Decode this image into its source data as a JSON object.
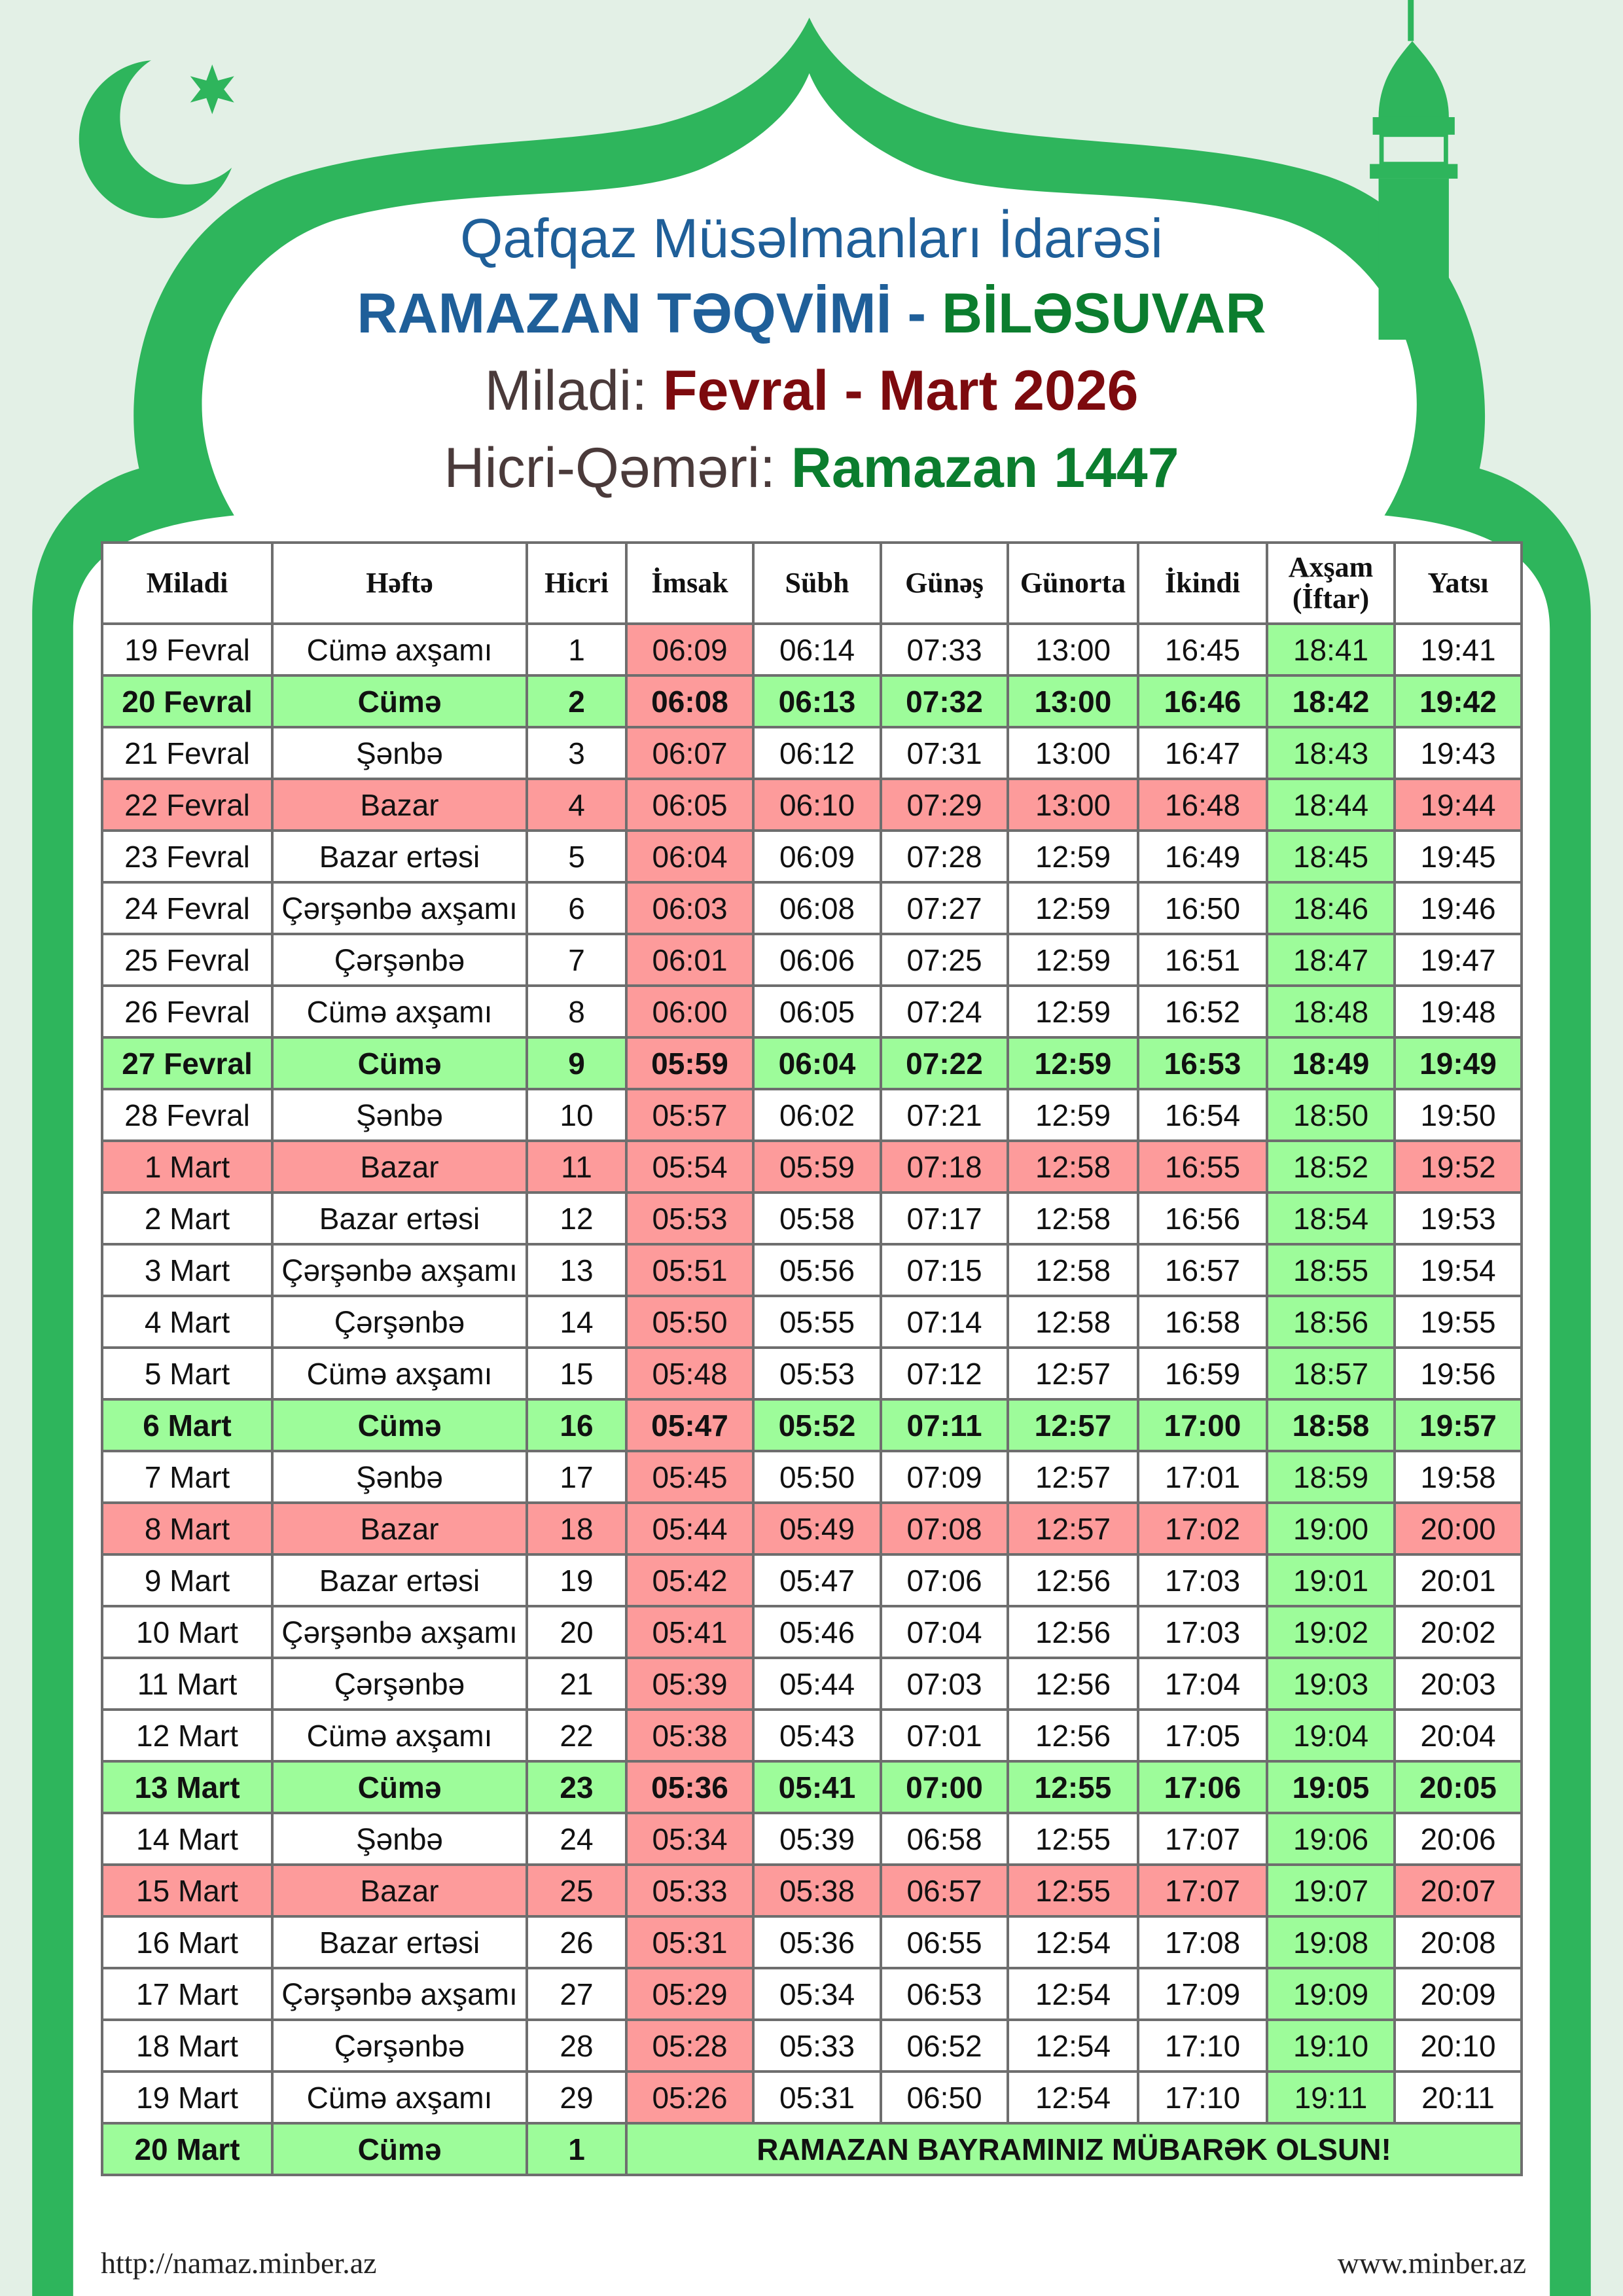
{
  "header": {
    "org": "Qafqaz Müsəlmanları İdarəsi",
    "title_main": "RAMAZAN TƏQVİMİ - ",
    "title_city": "BİLƏSUVAR",
    "miladi_label": "Miladi: ",
    "miladi_value": "Fevral - Mart 2026",
    "hicri_label": "Hicri-Qəməri: ",
    "hicri_value": "Ramazan 1447"
  },
  "colors": {
    "frame": "#2eb55c",
    "friday": "#9dfc9a",
    "sunday": "#fd9b9b",
    "blue": "#1f5f99",
    "green": "#0b7d2e",
    "maroon": "#7d0a0e"
  },
  "table": {
    "columns": [
      "Miladi",
      "Həftə",
      "Hicri",
      "İmsak",
      "Sübh",
      "Günəş",
      "Günorta",
      "İkindi",
      "Axşam (İftar)",
      "Yatsı"
    ],
    "rows": [
      {
        "miladi": "19 Fevral",
        "hefte": "Cümə axşamı",
        "hicri": "1",
        "times": [
          "06:09",
          "06:14",
          "07:33",
          "13:00",
          "16:45",
          "18:41",
          "19:41"
        ],
        "type": "normal"
      },
      {
        "miladi": "20 Fevral",
        "hefte": "Cümə",
        "hicri": "2",
        "times": [
          "06:08",
          "06:13",
          "07:32",
          "13:00",
          "16:46",
          "18:42",
          "19:42"
        ],
        "type": "fri"
      },
      {
        "miladi": "21 Fevral",
        "hefte": "Şənbə",
        "hicri": "3",
        "times": [
          "06:07",
          "06:12",
          "07:31",
          "13:00",
          "16:47",
          "18:43",
          "19:43"
        ],
        "type": "normal"
      },
      {
        "miladi": "22 Fevral",
        "hefte": "Bazar",
        "hicri": "4",
        "times": [
          "06:05",
          "06:10",
          "07:29",
          "13:00",
          "16:48",
          "18:44",
          "19:44"
        ],
        "type": "sun"
      },
      {
        "miladi": "23 Fevral",
        "hefte": "Bazar ertəsi",
        "hicri": "5",
        "times": [
          "06:04",
          "06:09",
          "07:28",
          "12:59",
          "16:49",
          "18:45",
          "19:45"
        ],
        "type": "normal"
      },
      {
        "miladi": "24 Fevral",
        "hefte": "Çərşənbə axşamı",
        "hicri": "6",
        "times": [
          "06:03",
          "06:08",
          "07:27",
          "12:59",
          "16:50",
          "18:46",
          "19:46"
        ],
        "type": "normal"
      },
      {
        "miladi": "25 Fevral",
        "hefte": "Çərşənbə",
        "hicri": "7",
        "times": [
          "06:01",
          "06:06",
          "07:25",
          "12:59",
          "16:51",
          "18:47",
          "19:47"
        ],
        "type": "normal"
      },
      {
        "miladi": "26 Fevral",
        "hefte": "Cümə axşamı",
        "hicri": "8",
        "times": [
          "06:00",
          "06:05",
          "07:24",
          "12:59",
          "16:52",
          "18:48",
          "19:48"
        ],
        "type": "normal"
      },
      {
        "miladi": "27 Fevral",
        "hefte": "Cümə",
        "hicri": "9",
        "times": [
          "05:59",
          "06:04",
          "07:22",
          "12:59",
          "16:53",
          "18:49",
          "19:49"
        ],
        "type": "fri"
      },
      {
        "miladi": "28 Fevral",
        "hefte": "Şənbə",
        "hicri": "10",
        "times": [
          "05:57",
          "06:02",
          "07:21",
          "12:59",
          "16:54",
          "18:50",
          "19:50"
        ],
        "type": "normal"
      },
      {
        "miladi": "1 Mart",
        "hefte": "Bazar",
        "hicri": "11",
        "times": [
          "05:54",
          "05:59",
          "07:18",
          "12:58",
          "16:55",
          "18:52",
          "19:52"
        ],
        "type": "sun"
      },
      {
        "miladi": "2 Mart",
        "hefte": "Bazar ertəsi",
        "hicri": "12",
        "times": [
          "05:53",
          "05:58",
          "07:17",
          "12:58",
          "16:56",
          "18:54",
          "19:53"
        ],
        "type": "normal"
      },
      {
        "miladi": "3 Mart",
        "hefte": "Çərşənbə axşamı",
        "hicri": "13",
        "times": [
          "05:51",
          "05:56",
          "07:15",
          "12:58",
          "16:57",
          "18:55",
          "19:54"
        ],
        "type": "normal"
      },
      {
        "miladi": "4 Mart",
        "hefte": "Çərşənbə",
        "hicri": "14",
        "times": [
          "05:50",
          "05:55",
          "07:14",
          "12:58",
          "16:58",
          "18:56",
          "19:55"
        ],
        "type": "normal"
      },
      {
        "miladi": "5 Mart",
        "hefte": "Cümə axşamı",
        "hicri": "15",
        "times": [
          "05:48",
          "05:53",
          "07:12",
          "12:57",
          "16:59",
          "18:57",
          "19:56"
        ],
        "type": "normal"
      },
      {
        "miladi": "6 Mart",
        "hefte": "Cümə",
        "hicri": "16",
        "times": [
          "05:47",
          "05:52",
          "07:11",
          "12:57",
          "17:00",
          "18:58",
          "19:57"
        ],
        "type": "fri"
      },
      {
        "miladi": "7 Mart",
        "hefte": "Şənbə",
        "hicri": "17",
        "times": [
          "05:45",
          "05:50",
          "07:09",
          "12:57",
          "17:01",
          "18:59",
          "19:58"
        ],
        "type": "normal"
      },
      {
        "miladi": "8 Mart",
        "hefte": "Bazar",
        "hicri": "18",
        "times": [
          "05:44",
          "05:49",
          "07:08",
          "12:57",
          "17:02",
          "19:00",
          "20:00"
        ],
        "type": "sun"
      },
      {
        "miladi": "9 Mart",
        "hefte": "Bazar ertəsi",
        "hicri": "19",
        "times": [
          "05:42",
          "05:47",
          "07:06",
          "12:56",
          "17:03",
          "19:01",
          "20:01"
        ],
        "type": "normal"
      },
      {
        "miladi": "10 Mart",
        "hefte": "Çərşənbə axşamı",
        "hicri": "20",
        "times": [
          "05:41",
          "05:46",
          "07:04",
          "12:56",
          "17:03",
          "19:02",
          "20:02"
        ],
        "type": "normal"
      },
      {
        "miladi": "11 Mart",
        "hefte": "Çərşənbə",
        "hicri": "21",
        "times": [
          "05:39",
          "05:44",
          "07:03",
          "12:56",
          "17:04",
          "19:03",
          "20:03"
        ],
        "type": "normal"
      },
      {
        "miladi": "12 Mart",
        "hefte": "Cümə axşamı",
        "hicri": "22",
        "times": [
          "05:38",
          "05:43",
          "07:01",
          "12:56",
          "17:05",
          "19:04",
          "20:04"
        ],
        "type": "normal"
      },
      {
        "miladi": "13 Mart",
        "hefte": "Cümə",
        "hicri": "23",
        "times": [
          "05:36",
          "05:41",
          "07:00",
          "12:55",
          "17:06",
          "19:05",
          "20:05"
        ],
        "type": "fri"
      },
      {
        "miladi": "14 Mart",
        "hefte": "Şənbə",
        "hicri": "24",
        "times": [
          "05:34",
          "05:39",
          "06:58",
          "12:55",
          "17:07",
          "19:06",
          "20:06"
        ],
        "type": "normal"
      },
      {
        "miladi": "15 Mart",
        "hefte": "Bazar",
        "hicri": "25",
        "times": [
          "05:33",
          "05:38",
          "06:57",
          "12:55",
          "17:07",
          "19:07",
          "20:07"
        ],
        "type": "sun"
      },
      {
        "miladi": "16 Mart",
        "hefte": "Bazar ertəsi",
        "hicri": "26",
        "times": [
          "05:31",
          "05:36",
          "06:55",
          "12:54",
          "17:08",
          "19:08",
          "20:08"
        ],
        "type": "normal"
      },
      {
        "miladi": "17 Mart",
        "hefte": "Çərşənbə axşamı",
        "hicri": "27",
        "times": [
          "05:29",
          "05:34",
          "06:53",
          "12:54",
          "17:09",
          "19:09",
          "20:09"
        ],
        "type": "normal"
      },
      {
        "miladi": "18 Mart",
        "hefte": "Çərşənbə",
        "hicri": "28",
        "times": [
          "05:28",
          "05:33",
          "06:52",
          "12:54",
          "17:10",
          "19:10",
          "20:10"
        ],
        "type": "normal"
      },
      {
        "miladi": "19 Mart",
        "hefte": "Cümə axşamı",
        "hicri": "29",
        "times": [
          "05:26",
          "05:31",
          "06:50",
          "12:54",
          "17:10",
          "19:11",
          "20:11"
        ],
        "type": "normal"
      }
    ],
    "final_row": {
      "miladi": "20 Mart",
      "hefte": "Cümə",
      "hicri": "1",
      "message": "RAMAZAN BAYRAMINIZ MÜBARƏK OLSUN!"
    }
  },
  "footer": {
    "left": "http://namaz.minber.az",
    "right": "www.minber.az"
  },
  "icons": [
    "crescent-star-icon",
    "minaret-icon"
  ]
}
